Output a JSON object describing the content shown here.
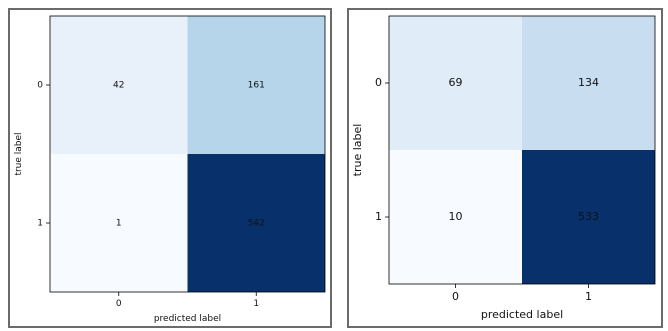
{
  "chart_data": [
    {
      "type": "heatmap",
      "title": "",
      "xlabel": "predicted label",
      "ylabel": "true label",
      "x_ticks": [
        "0",
        "1"
      ],
      "y_ticks": [
        "0",
        "1"
      ],
      "values": [
        [
          42,
          161
        ],
        [
          1,
          542
        ]
      ],
      "colormap": "Blues",
      "colors": {
        "low": "#f7fbff",
        "high": "#08306b"
      }
    },
    {
      "type": "heatmap",
      "title": "",
      "xlabel": "predicted label",
      "ylabel": "true label",
      "x_ticks": [
        "0",
        "1"
      ],
      "y_ticks": [
        "0",
        "1"
      ],
      "values": [
        [
          69,
          134
        ],
        [
          10,
          533
        ]
      ],
      "colormap": "Blues",
      "colors": {
        "low": "#f7fbff",
        "high": "#08306b"
      }
    }
  ]
}
